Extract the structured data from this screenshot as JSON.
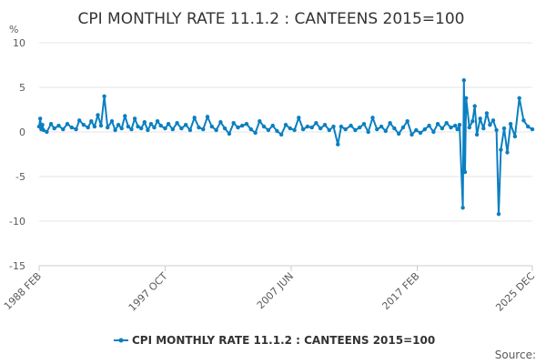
{
  "chart_data": {
    "type": "line",
    "title": "CPI MONTHLY RATE 11.1.2 : CANTEENS 2015=100",
    "ylabel": "%",
    "ylim": [
      -15,
      10
    ],
    "yticks": [
      10,
      5,
      0,
      -5,
      -10,
      -15
    ],
    "xlim": [
      "1988-02",
      "2025-12"
    ],
    "xticks": [
      "1988 FEB",
      "1997 OCT",
      "2007 JUN",
      "2017 FEB",
      "2025 DEC"
    ],
    "grid": "horizontal",
    "legend_position": "bottom",
    "series": [
      {
        "name": "CPI MONTHLY RATE 11.1.2 : CANTEENS 2015=100",
        "color": "#0b7fc1",
        "points": [
          [
            "1988-02",
            0.6
          ],
          [
            "1988-03",
            1.5
          ],
          [
            "1988-04",
            0.3
          ],
          [
            "1988-05",
            0.8
          ],
          [
            "1988-06",
            0.2
          ],
          [
            "1988-09",
            0.0
          ],
          [
            "1989-01",
            0.9
          ],
          [
            "1989-04",
            0.4
          ],
          [
            "1989-08",
            0.7
          ],
          [
            "1989-12",
            0.3
          ],
          [
            "1990-04",
            0.9
          ],
          [
            "1990-08",
            0.5
          ],
          [
            "1990-12",
            0.3
          ],
          [
            "1991-03",
            1.3
          ],
          [
            "1991-07",
            0.8
          ],
          [
            "1991-11",
            0.5
          ],
          [
            "1992-02",
            1.2
          ],
          [
            "1992-05",
            0.6
          ],
          [
            "1992-08",
            1.9
          ],
          [
            "1992-11",
            0.7
          ],
          [
            "1993-02",
            4.0
          ],
          [
            "1993-05",
            0.5
          ],
          [
            "1993-09",
            1.2
          ],
          [
            "1993-12",
            0.2
          ],
          [
            "1994-03",
            0.8
          ],
          [
            "1994-06",
            0.4
          ],
          [
            "1994-09",
            1.8
          ],
          [
            "1994-12",
            0.6
          ],
          [
            "1995-03",
            0.3
          ],
          [
            "1995-06",
            1.5
          ],
          [
            "1995-09",
            0.6
          ],
          [
            "1995-12",
            0.4
          ],
          [
            "1996-03",
            1.1
          ],
          [
            "1996-06",
            0.2
          ],
          [
            "1996-09",
            0.9
          ],
          [
            "1996-12",
            0.5
          ],
          [
            "1997-03",
            1.2
          ],
          [
            "1997-06",
            0.7
          ],
          [
            "1997-10",
            0.4
          ],
          [
            "1998-01",
            0.9
          ],
          [
            "1998-05",
            0.3
          ],
          [
            "1998-09",
            1.0
          ],
          [
            "1999-01",
            0.4
          ],
          [
            "1999-05",
            0.8
          ],
          [
            "1999-09",
            0.2
          ],
          [
            "2000-01",
            1.6
          ],
          [
            "2000-05",
            0.5
          ],
          [
            "2000-09",
            0.3
          ],
          [
            "2001-01",
            1.7
          ],
          [
            "2001-05",
            0.6
          ],
          [
            "2001-09",
            0.2
          ],
          [
            "2002-01",
            1.1
          ],
          [
            "2002-05",
            0.4
          ],
          [
            "2002-09",
            -0.2
          ],
          [
            "2003-01",
            1.0
          ],
          [
            "2003-05",
            0.5
          ],
          [
            "2003-09",
            0.7
          ],
          [
            "2004-01",
            0.9
          ],
          [
            "2004-05",
            0.3
          ],
          [
            "2004-09",
            -0.1
          ],
          [
            "2005-01",
            1.2
          ],
          [
            "2005-05",
            0.6
          ],
          [
            "2005-09",
            0.2
          ],
          [
            "2006-01",
            0.7
          ],
          [
            "2006-05",
            0.1
          ],
          [
            "2006-09",
            -0.3
          ],
          [
            "2007-01",
            0.8
          ],
          [
            "2007-05",
            0.4
          ],
          [
            "2007-09",
            0.2
          ],
          [
            "2008-01",
            1.6
          ],
          [
            "2008-05",
            0.3
          ],
          [
            "2008-09",
            0.6
          ],
          [
            "2009-01",
            0.5
          ],
          [
            "2009-05",
            1.0
          ],
          [
            "2009-09",
            0.4
          ],
          [
            "2010-01",
            0.8
          ],
          [
            "2010-05",
            0.2
          ],
          [
            "2010-09",
            0.6
          ],
          [
            "2011-01",
            -1.4
          ],
          [
            "2011-04",
            0.6
          ],
          [
            "2011-08",
            0.3
          ],
          [
            "2012-01",
            0.7
          ],
          [
            "2012-05",
            0.2
          ],
          [
            "2012-09",
            0.5
          ],
          [
            "2013-01",
            0.9
          ],
          [
            "2013-05",
            0.0
          ],
          [
            "2013-09",
            1.6
          ],
          [
            "2014-01",
            0.3
          ],
          [
            "2014-05",
            0.6
          ],
          [
            "2014-09",
            0.1
          ],
          [
            "2015-01",
            1.0
          ],
          [
            "2015-05",
            0.4
          ],
          [
            "2015-09",
            -0.2
          ],
          [
            "2016-01",
            0.5
          ],
          [
            "2016-05",
            1.2
          ],
          [
            "2016-09",
            -0.3
          ],
          [
            "2017-01",
            0.2
          ],
          [
            "2017-05",
            -0.1
          ],
          [
            "2017-09",
            0.3
          ],
          [
            "2018-01",
            0.7
          ],
          [
            "2018-05",
            0.0
          ],
          [
            "2018-09",
            0.9
          ],
          [
            "2019-01",
            0.4
          ],
          [
            "2019-05",
            1.0
          ],
          [
            "2019-09",
            0.5
          ],
          [
            "2020-01",
            0.7
          ],
          [
            "2020-03",
            0.3
          ],
          [
            "2020-05",
            0.8
          ],
          [
            "2020-08",
            -8.5
          ],
          [
            "2020-09",
            5.8
          ],
          [
            "2020-10",
            -4.5
          ],
          [
            "2020-11",
            3.8
          ],
          [
            "2021-02",
            0.5
          ],
          [
            "2021-05",
            1.2
          ],
          [
            "2021-07",
            2.9
          ],
          [
            "2021-09",
            -0.3
          ],
          [
            "2021-12",
            1.5
          ],
          [
            "2022-03",
            0.4
          ],
          [
            "2022-06",
            2.1
          ],
          [
            "2022-09",
            0.8
          ],
          [
            "2022-12",
            1.3
          ],
          [
            "2023-03",
            0.2
          ],
          [
            "2023-05",
            -9.2
          ],
          [
            "2023-07",
            -2.0
          ],
          [
            "2023-10",
            0.4
          ],
          [
            "2024-01",
            -2.3
          ],
          [
            "2024-04",
            0.9
          ],
          [
            "2024-08",
            -0.5
          ],
          [
            "2024-12",
            3.8
          ],
          [
            "2025-04",
            1.3
          ],
          [
            "2025-08",
            0.6
          ],
          [
            "2025-12",
            0.3
          ]
        ]
      }
    ],
    "source_label": "Source:"
  }
}
